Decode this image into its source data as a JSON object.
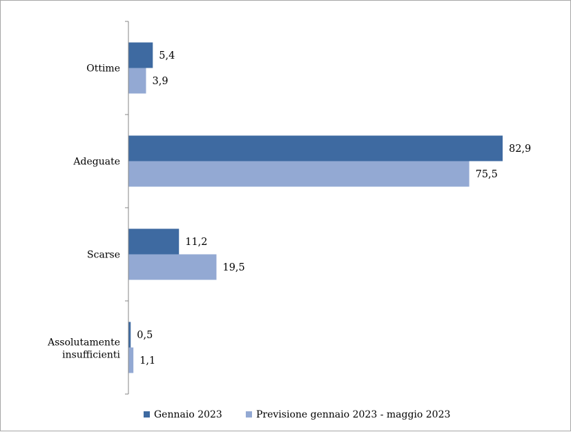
{
  "chart_data": {
    "type": "bar",
    "orientation": "horizontal",
    "categories": [
      "Ottime",
      "Adeguate",
      "Scarse",
      "Assolutamente insufficienti"
    ],
    "series": [
      {
        "name": "Gennaio 2023",
        "color": "#3e6aa1",
        "values": [
          5.4,
          82.9,
          11.2,
          0.5
        ],
        "labels": [
          "5,4",
          "82,9",
          "11,2",
          "0,5"
        ]
      },
      {
        "name": "Previsione gennaio 2023 - maggio 2023",
        "color": "#93a9d3",
        "values": [
          3.9,
          75.5,
          19.5,
          1.1
        ],
        "labels": [
          "3,9",
          "75,5",
          "19,5",
          "1,1"
        ]
      }
    ],
    "xlim": [
      0,
      90
    ],
    "grid": false,
    "legend_position": "bottom"
  }
}
